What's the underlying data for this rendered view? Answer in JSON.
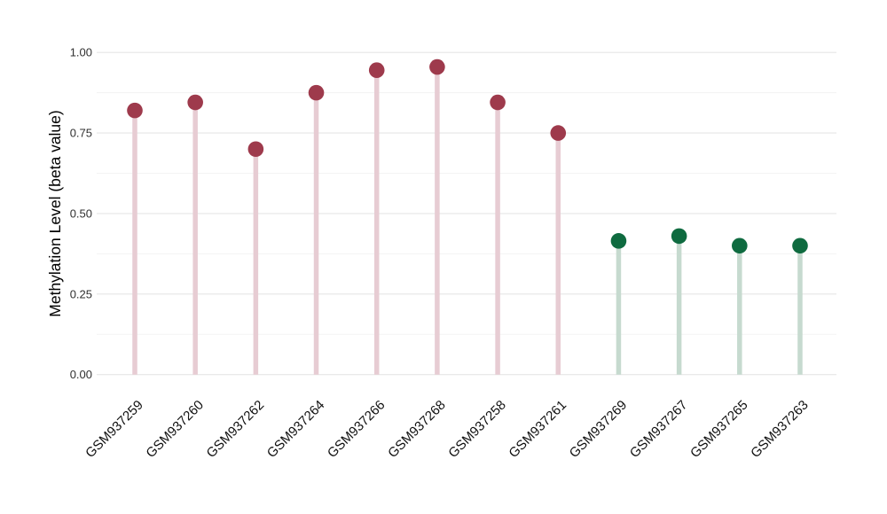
{
  "chart_data": {
    "type": "lollipop",
    "title": "",
    "xlabel": "",
    "ylabel": "Methylation Level (beta value)",
    "ylim": [
      0,
      1
    ],
    "yticks": [
      0,
      0.25,
      0.5,
      0.75,
      1.0
    ],
    "ytick_labels": [
      "0.00",
      "0.25",
      "0.50",
      "0.75",
      "1.00"
    ],
    "minor_gridlines": [
      0.125,
      0.375,
      0.625,
      0.875
    ],
    "grid": "horizontal-only",
    "legend": "none",
    "background_color": "#ffffff",
    "grid_major_color": "#e6e6e6",
    "grid_minor_color": "#f3f3f3",
    "categories": [
      "GSM937259",
      "GSM937260",
      "GSM937262",
      "GSM937264",
      "GSM937266",
      "GSM937268",
      "GSM937258",
      "GSM937261",
      "GSM937269",
      "GSM937267",
      "GSM937265",
      "GSM937263"
    ],
    "values": [
      0.82,
      0.845,
      0.7,
      0.875,
      0.945,
      0.955,
      0.845,
      0.75,
      0.415,
      0.43,
      0.4,
      0.4
    ],
    "points": [
      {
        "label": "GSM937259",
        "value": 0.82,
        "group": "maroon"
      },
      {
        "label": "GSM937260",
        "value": 0.845,
        "group": "maroon"
      },
      {
        "label": "GSM937262",
        "value": 0.7,
        "group": "maroon"
      },
      {
        "label": "GSM937264",
        "value": 0.875,
        "group": "maroon"
      },
      {
        "label": "GSM937266",
        "value": 0.945,
        "group": "maroon"
      },
      {
        "label": "GSM937268",
        "value": 0.955,
        "group": "maroon"
      },
      {
        "label": "GSM937258",
        "value": 0.845,
        "group": "maroon"
      },
      {
        "label": "GSM937261",
        "value": 0.75,
        "group": "maroon"
      },
      {
        "label": "GSM937269",
        "value": 0.415,
        "group": "green"
      },
      {
        "label": "GSM937267",
        "value": 0.43,
        "group": "green"
      },
      {
        "label": "GSM937265",
        "value": 0.4,
        "group": "green"
      },
      {
        "label": "GSM937263",
        "value": 0.4,
        "group": "green"
      }
    ],
    "group_colors": {
      "maroon": {
        "dot": "#9e3a4c",
        "stem": "#e7ccd3"
      },
      "green": {
        "dot": "#0f6b40",
        "stem": "#c6dacf"
      }
    }
  }
}
